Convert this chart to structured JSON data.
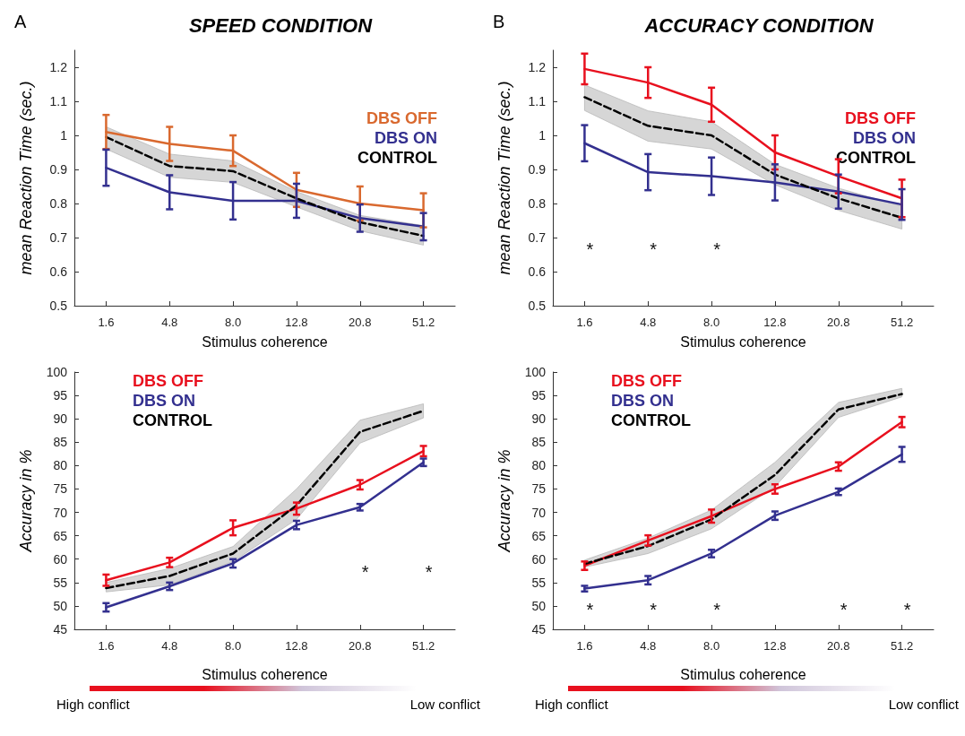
{
  "chart_data": [
    {
      "type": "line",
      "title": "SPEED CONDITION",
      "xlabel": "Stimulus coherence",
      "ylabel": "mean Reaction Time (sec.)",
      "categories": [
        "1.6",
        "4.8",
        "8.0",
        "12.8",
        "20.8",
        "51.2"
      ],
      "ylim": [
        0.5,
        1.25
      ],
      "yticks": [
        0.5,
        0.6,
        0.7,
        0.8,
        0.9,
        1,
        1.1,
        1.2
      ],
      "legend": "top right",
      "annotations": [
        "A"
      ],
      "series": [
        {
          "name": "DBS OFF",
          "color": "#d9692f",
          "values": [
            1.01,
            0.975,
            0.955,
            0.84,
            0.8,
            0.78
          ],
          "errors": [
            0.05,
            0.05,
            0.045,
            0.05,
            0.05,
            0.05
          ]
        },
        {
          "name": "DBS ON",
          "color": "#33308f",
          "values": [
            0.905,
            0.833,
            0.808,
            0.808,
            0.757,
            0.732
          ],
          "errors": [
            0.053,
            0.05,
            0.055,
            0.05,
            0.04,
            0.04
          ]
        },
        {
          "name": "CONTROL",
          "color": "#000000",
          "line_style": "dashed",
          "values": [
            0.995,
            0.91,
            0.895,
            0.815,
            0.745,
            0.705
          ],
          "lower": [
            0.96,
            0.877,
            0.862,
            0.79,
            0.72,
            0.678
          ],
          "upper": [
            1.025,
            0.945,
            0.925,
            0.835,
            0.765,
            0.735
          ]
        }
      ]
    },
    {
      "type": "line",
      "title": "ACCURACY CONDITION",
      "xlabel": "Stimulus coherence",
      "ylabel": "mean Reaction Time (sec.)",
      "categories": [
        "1.6",
        "4.8",
        "8.0",
        "12.8",
        "20.8",
        "51.2"
      ],
      "ylim": [
        0.5,
        1.25
      ],
      "yticks": [
        0.5,
        0.6,
        0.7,
        0.8,
        0.9,
        1,
        1.1,
        1.2
      ],
      "legend": "top right",
      "annotations": [
        "B",
        "*",
        "*",
        "*"
      ],
      "series": [
        {
          "name": "DBS OFF",
          "color": "#e8101e",
          "values": [
            1.195,
            1.155,
            1.09,
            0.95,
            0.88,
            0.815
          ],
          "errors": [
            0.045,
            0.045,
            0.05,
            0.05,
            0.05,
            0.055
          ]
        },
        {
          "name": "DBS ON",
          "color": "#33308f",
          "values": [
            0.977,
            0.892,
            0.88,
            0.862,
            0.835,
            0.797
          ],
          "errors": [
            0.053,
            0.053,
            0.055,
            0.053,
            0.05,
            0.045
          ]
        },
        {
          "name": "CONTROL",
          "color": "#000000",
          "line_style": "dashed",
          "values": [
            1.112,
            1.028,
            1.0,
            0.885,
            0.815,
            0.758
          ],
          "lower": [
            1.073,
            0.983,
            0.96,
            0.855,
            0.78,
            0.725
          ],
          "upper": [
            1.148,
            1.072,
            1.04,
            0.915,
            0.845,
            0.792
          ]
        }
      ]
    },
    {
      "type": "line",
      "xlabel": "Stimulus coherence",
      "ylabel": "Accuracy in %",
      "categories": [
        "1.6",
        "4.8",
        "8.0",
        "12.8",
        "20.8",
        "51.2"
      ],
      "ylim": [
        45,
        100
      ],
      "yticks": [
        45,
        50,
        55,
        60,
        65,
        70,
        75,
        80,
        85,
        90,
        95,
        100
      ],
      "legend": "top left",
      "annotations": [
        "High conflict",
        "Low conflict",
        "*",
        "*"
      ],
      "series": [
        {
          "name": "DBS OFF",
          "color": "#e8101e",
          "values": [
            55.5,
            59.3,
            66.7,
            70.8,
            75.9,
            83.1
          ],
          "errors": [
            1.2,
            1,
            1.6,
            1.3,
            1,
            1.1
          ]
        },
        {
          "name": "DBS ON",
          "color": "#33308f",
          "values": [
            49.7,
            54.2,
            59.1,
            67.3,
            71.1,
            80.7
          ],
          "errors": [
            0.9,
            0.8,
            0.9,
            0.9,
            0.7,
            0.8
          ]
        },
        {
          "name": "CONTROL",
          "color": "#000000",
          "line_style": "dashed",
          "values": [
            53.8,
            56.4,
            61.2,
            71.5,
            87.2,
            91.7
          ],
          "lower": [
            53,
            54.5,
            59.5,
            68.5,
            84.8,
            90.2
          ],
          "upper": [
            55,
            58,
            62.7,
            75,
            89.7,
            93.2
          ]
        }
      ]
    },
    {
      "type": "line",
      "xlabel": "Stimulus coherence",
      "ylabel": "Accuracy in %",
      "categories": [
        "1.6",
        "4.8",
        "8.0",
        "12.8",
        "20.8",
        "51.2"
      ],
      "ylim": [
        45,
        100
      ],
      "yticks": [
        45,
        50,
        55,
        60,
        65,
        70,
        75,
        80,
        85,
        90,
        95,
        100
      ],
      "legend": "top left",
      "annotations": [
        "High conflict",
        "Low conflict",
        "*",
        "*",
        "*",
        "*",
        "*"
      ],
      "series": [
        {
          "name": "DBS OFF",
          "color": "#e8101e",
          "values": [
            58.6,
            64,
            69.2,
            75,
            79.8,
            89.3
          ],
          "errors": [
            0.9,
            1.1,
            1.4,
            1,
            0.9,
            1.1
          ]
        },
        {
          "name": "DBS ON",
          "color": "#33308f",
          "values": [
            53.7,
            55.5,
            61.2,
            69.3,
            74.4,
            82.4
          ],
          "errors": [
            0.6,
            0.9,
            0.8,
            0.9,
            0.7,
            1.6
          ]
        },
        {
          "name": "CONTROL",
          "color": "#000000",
          "line_style": "dashed",
          "values": [
            59,
            62.8,
            68.5,
            78,
            92,
            95.3
          ],
          "lower": [
            58.3,
            61.2,
            66.5,
            75.5,
            90.3,
            94.7
          ],
          "upper": [
            59.8,
            64.5,
            70.5,
            80.7,
            93.5,
            96.5
          ]
        }
      ]
    }
  ]
}
